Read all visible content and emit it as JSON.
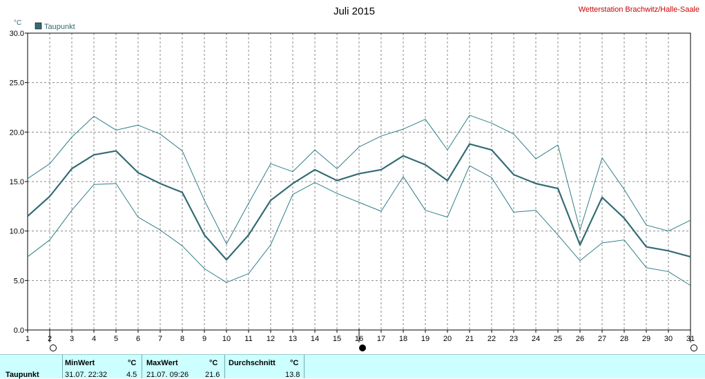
{
  "title": "Juli 2015",
  "station": "Wetterstation Brachwitz/Halle-Saale",
  "colors": {
    "series": "#336b73",
    "band": "#2e7d86",
    "station": "#cc0000",
    "grid": "#888888",
    "stats_bg": "#ccffff"
  },
  "chart_data": {
    "type": "line",
    "unit_label": "°C",
    "legend": [
      "Taupunkt"
    ],
    "ylim": [
      0,
      30
    ],
    "yticks": [
      "0.0",
      "5.0",
      "10.0",
      "15.0",
      "20.0",
      "25.0",
      "30.0"
    ],
    "x": [
      1,
      2,
      3,
      4,
      5,
      6,
      7,
      8,
      9,
      10,
      11,
      12,
      13,
      14,
      15,
      16,
      17,
      18,
      19,
      20,
      21,
      22,
      23,
      24,
      25,
      26,
      27,
      28,
      29,
      30,
      31
    ],
    "grid": true,
    "series": [
      {
        "name": "Taupunkt",
        "role": "mean",
        "values": [
          11.5,
          13.5,
          16.3,
          17.7,
          18.1,
          15.9,
          14.8,
          13.9,
          9.6,
          7.1,
          9.6,
          13.1,
          14.8,
          16.2,
          15.1,
          15.8,
          16.2,
          17.6,
          16.7,
          15.1,
          18.8,
          18.2,
          15.7,
          14.8,
          14.3,
          8.6,
          13.4,
          11.3,
          8.4,
          8.0,
          7.4
        ]
      },
      {
        "role": "max",
        "values": [
          15.3,
          16.8,
          19.5,
          21.6,
          20.2,
          20.7,
          19.8,
          18.1,
          13.1,
          8.7,
          12.8,
          16.8,
          16.0,
          18.2,
          16.3,
          18.5,
          19.6,
          20.3,
          21.3,
          18.2,
          21.7,
          20.9,
          19.8,
          17.3,
          18.7,
          10.1,
          17.4,
          14.2,
          10.6,
          10.0,
          11.1
        ]
      },
      {
        "role": "min",
        "values": [
          7.4,
          9.1,
          12.1,
          14.7,
          14.8,
          11.4,
          10.1,
          8.5,
          6.2,
          4.8,
          5.7,
          8.6,
          13.7,
          14.9,
          13.8,
          12.9,
          12.0,
          15.5,
          12.1,
          11.4,
          16.6,
          15.4,
          11.9,
          12.1,
          9.6,
          7.0,
          8.8,
          9.1,
          6.3,
          5.9,
          4.5
        ]
      }
    ],
    "moon_phases": [
      {
        "day": 2,
        "phase": "full"
      },
      {
        "day": 16,
        "phase": "new"
      },
      {
        "day": 31,
        "phase": "full"
      }
    ]
  },
  "stats": {
    "row_label": "Taupunkt",
    "min_header": "MinWert",
    "min_unit": "°C",
    "min_time": "31.07.  22:32",
    "min_value": "4.5",
    "max_header": "MaxWert",
    "max_unit": "°C",
    "max_time": "21.07.  09:26",
    "max_value": "21.6",
    "avg_header": "Durchschnitt",
    "avg_unit": "°C",
    "avg_value": "13.8"
  }
}
